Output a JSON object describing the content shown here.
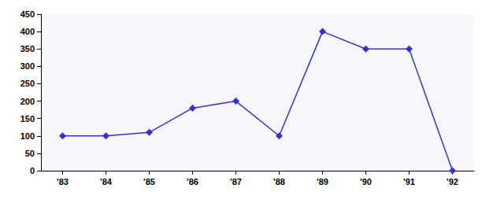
{
  "chart_data": {
    "type": "line",
    "categories": [
      "'83",
      "'84",
      "'85",
      "'86",
      "'87",
      "'88",
      "'89",
      "'90",
      "'91",
      "'92"
    ],
    "values": [
      100,
      100,
      110,
      180,
      200,
      100,
      400,
      350,
      350,
      0
    ],
    "color": "#3333cc",
    "marker": "diamond",
    "line_style": "solid",
    "ylim": [
      0,
      450
    ],
    "yticks": [
      0,
      50,
      100,
      150,
      200,
      250,
      300,
      350,
      400,
      450
    ],
    "grid": false
  }
}
